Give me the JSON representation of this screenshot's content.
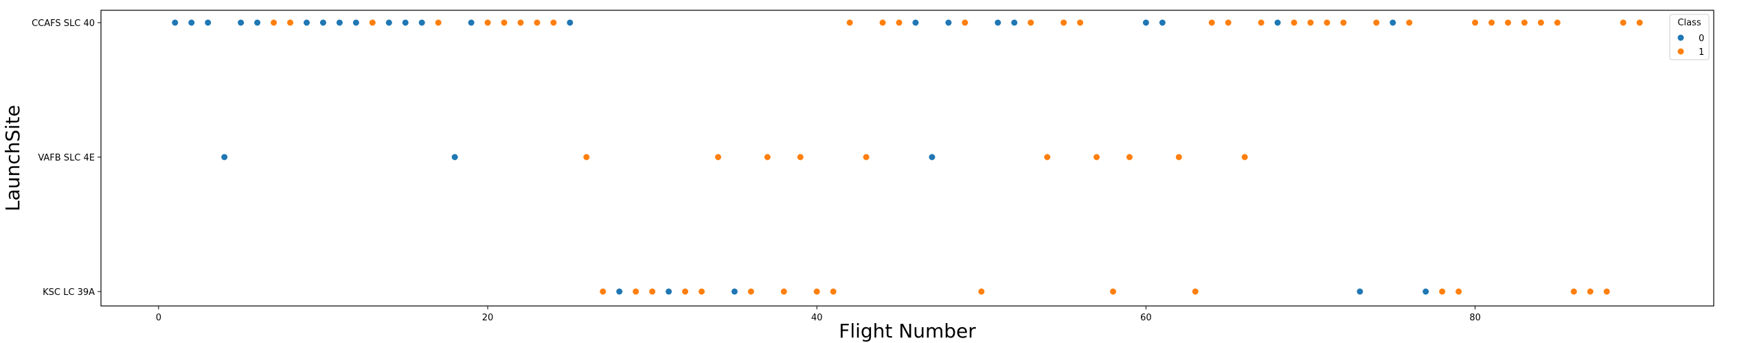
{
  "chart_data": {
    "type": "scatter",
    "xlabel": "Flight Number",
    "ylabel": "LaunchSite",
    "xlim": [
      -3.5,
      94.5
    ],
    "xticks": [
      0,
      20,
      40,
      60,
      80
    ],
    "categories": [
      "CCAFS SLC 40",
      "VAFB SLC 4E",
      "KSC LC 39A"
    ],
    "grid": false,
    "legend": {
      "title": "Class",
      "placement": "top-right",
      "entries": [
        {
          "label": "0",
          "color": "#1f77b4"
        },
        {
          "label": "1",
          "color": "#ff7f0e"
        }
      ]
    },
    "series": [
      {
        "name": "0",
        "color": "#1f77b4",
        "points": [
          {
            "x": 1,
            "site": "CCAFS SLC 40"
          },
          {
            "x": 2,
            "site": "CCAFS SLC 40"
          },
          {
            "x": 3,
            "site": "CCAFS SLC 40"
          },
          {
            "x": 4,
            "site": "VAFB SLC 4E"
          },
          {
            "x": 5,
            "site": "CCAFS SLC 40"
          },
          {
            "x": 6,
            "site": "CCAFS SLC 40"
          },
          {
            "x": 9,
            "site": "CCAFS SLC 40"
          },
          {
            "x": 10,
            "site": "CCAFS SLC 40"
          },
          {
            "x": 11,
            "site": "CCAFS SLC 40"
          },
          {
            "x": 12,
            "site": "CCAFS SLC 40"
          },
          {
            "x": 14,
            "site": "CCAFS SLC 40"
          },
          {
            "x": 15,
            "site": "CCAFS SLC 40"
          },
          {
            "x": 16,
            "site": "CCAFS SLC 40"
          },
          {
            "x": 18,
            "site": "VAFB SLC 4E"
          },
          {
            "x": 19,
            "site": "CCAFS SLC 40"
          },
          {
            "x": 25,
            "site": "CCAFS SLC 40"
          },
          {
            "x": 28,
            "site": "KSC LC 39A"
          },
          {
            "x": 31,
            "site": "KSC LC 39A"
          },
          {
            "x": 35,
            "site": "KSC LC 39A"
          },
          {
            "x": 46,
            "site": "CCAFS SLC 40"
          },
          {
            "x": 47,
            "site": "VAFB SLC 4E"
          },
          {
            "x": 48,
            "site": "CCAFS SLC 40"
          },
          {
            "x": 51,
            "site": "CCAFS SLC 40"
          },
          {
            "x": 52,
            "site": "CCAFS SLC 40"
          },
          {
            "x": 60,
            "site": "CCAFS SLC 40"
          },
          {
            "x": 61,
            "site": "CCAFS SLC 40"
          },
          {
            "x": 68,
            "site": "CCAFS SLC 40"
          },
          {
            "x": 73,
            "site": "KSC LC 39A"
          },
          {
            "x": 75,
            "site": "CCAFS SLC 40"
          },
          {
            "x": 77,
            "site": "KSC LC 39A"
          }
        ]
      },
      {
        "name": "1",
        "color": "#ff7f0e",
        "points": [
          {
            "x": 7,
            "site": "CCAFS SLC 40"
          },
          {
            "x": 8,
            "site": "CCAFS SLC 40"
          },
          {
            "x": 13,
            "site": "CCAFS SLC 40"
          },
          {
            "x": 17,
            "site": "CCAFS SLC 40"
          },
          {
            "x": 20,
            "site": "CCAFS SLC 40"
          },
          {
            "x": 21,
            "site": "CCAFS SLC 40"
          },
          {
            "x": 22,
            "site": "CCAFS SLC 40"
          },
          {
            "x": 23,
            "site": "CCAFS SLC 40"
          },
          {
            "x": 24,
            "site": "CCAFS SLC 40"
          },
          {
            "x": 26,
            "site": "VAFB SLC 4E"
          },
          {
            "x": 27,
            "site": "KSC LC 39A"
          },
          {
            "x": 29,
            "site": "KSC LC 39A"
          },
          {
            "x": 30,
            "site": "KSC LC 39A"
          },
          {
            "x": 32,
            "site": "KSC LC 39A"
          },
          {
            "x": 33,
            "site": "KSC LC 39A"
          },
          {
            "x": 34,
            "site": "VAFB SLC 4E"
          },
          {
            "x": 36,
            "site": "KSC LC 39A"
          },
          {
            "x": 37,
            "site": "VAFB SLC 4E"
          },
          {
            "x": 38,
            "site": "KSC LC 39A"
          },
          {
            "x": 39,
            "site": "VAFB SLC 4E"
          },
          {
            "x": 40,
            "site": "KSC LC 39A"
          },
          {
            "x": 41,
            "site": "KSC LC 39A"
          },
          {
            "x": 42,
            "site": "CCAFS SLC 40"
          },
          {
            "x": 43,
            "site": "VAFB SLC 4E"
          },
          {
            "x": 44,
            "site": "CCAFS SLC 40"
          },
          {
            "x": 45,
            "site": "CCAFS SLC 40"
          },
          {
            "x": 49,
            "site": "CCAFS SLC 40"
          },
          {
            "x": 50,
            "site": "KSC LC 39A"
          },
          {
            "x": 53,
            "site": "CCAFS SLC 40"
          },
          {
            "x": 54,
            "site": "VAFB SLC 4E"
          },
          {
            "x": 55,
            "site": "CCAFS SLC 40"
          },
          {
            "x": 56,
            "site": "CCAFS SLC 40"
          },
          {
            "x": 57,
            "site": "VAFB SLC 4E"
          },
          {
            "x": 58,
            "site": "KSC LC 39A"
          },
          {
            "x": 59,
            "site": "VAFB SLC 4E"
          },
          {
            "x": 62,
            "site": "VAFB SLC 4E"
          },
          {
            "x": 63,
            "site": "KSC LC 39A"
          },
          {
            "x": 64,
            "site": "CCAFS SLC 40"
          },
          {
            "x": 65,
            "site": "CCAFS SLC 40"
          },
          {
            "x": 66,
            "site": "VAFB SLC 4E"
          },
          {
            "x": 67,
            "site": "CCAFS SLC 40"
          },
          {
            "x": 69,
            "site": "CCAFS SLC 40"
          },
          {
            "x": 70,
            "site": "CCAFS SLC 40"
          },
          {
            "x": 71,
            "site": "CCAFS SLC 40"
          },
          {
            "x": 72,
            "site": "CCAFS SLC 40"
          },
          {
            "x": 74,
            "site": "CCAFS SLC 40"
          },
          {
            "x": 76,
            "site": "CCAFS SLC 40"
          },
          {
            "x": 78,
            "site": "KSC LC 39A"
          },
          {
            "x": 79,
            "site": "KSC LC 39A"
          },
          {
            "x": 80,
            "site": "CCAFS SLC 40"
          },
          {
            "x": 81,
            "site": "CCAFS SLC 40"
          },
          {
            "x": 82,
            "site": "CCAFS SLC 40"
          },
          {
            "x": 83,
            "site": "CCAFS SLC 40"
          },
          {
            "x": 84,
            "site": "CCAFS SLC 40"
          },
          {
            "x": 85,
            "site": "CCAFS SLC 40"
          },
          {
            "x": 86,
            "site": "KSC LC 39A"
          },
          {
            "x": 87,
            "site": "KSC LC 39A"
          },
          {
            "x": 88,
            "site": "KSC LC 39A"
          },
          {
            "x": 89,
            "site": "CCAFS SLC 40"
          },
          {
            "x": 90,
            "site": "CCAFS SLC 40"
          }
        ]
      }
    ]
  }
}
